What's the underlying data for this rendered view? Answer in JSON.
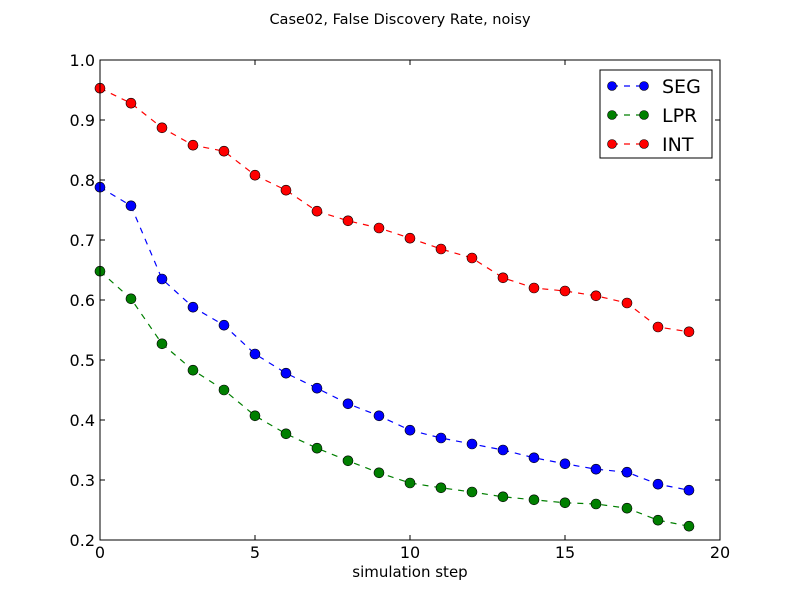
{
  "chart_data": {
    "type": "line",
    "title": "Case02, False Discovery Rate, noisy",
    "xlabel": "simulation step",
    "ylabel": "",
    "xlim": [
      0,
      20
    ],
    "ylim": [
      0.2,
      1.0
    ],
    "xticks": [
      0,
      5,
      10,
      15,
      20
    ],
    "xtick_labels": [
      "0",
      "5",
      "10",
      "15",
      "20"
    ],
    "yticks": [
      0.2,
      0.3,
      0.4,
      0.5,
      0.6,
      0.7,
      0.8,
      0.9,
      1.0
    ],
    "ytick_labels": [
      "0.2",
      "0.3",
      "0.4",
      "0.5",
      "0.6",
      "0.7",
      "0.8",
      "0.9",
      "1.0"
    ],
    "grid": false,
    "legend_position": "top-right",
    "x": [
      0,
      1,
      2,
      3,
      4,
      5,
      6,
      7,
      8,
      9,
      10,
      11,
      12,
      13,
      14,
      15,
      16,
      17,
      18,
      19
    ],
    "series": [
      {
        "name": "SEG",
        "color": "#0000ff",
        "values": [
          0.788,
          0.757,
          0.635,
          0.588,
          0.558,
          0.51,
          0.478,
          0.453,
          0.427,
          0.407,
          0.383,
          0.37,
          0.36,
          0.35,
          0.337,
          0.327,
          0.318,
          0.313,
          0.293,
          0.283
        ]
      },
      {
        "name": "LPR",
        "color": "#007f00",
        "values": [
          0.648,
          0.602,
          0.527,
          0.483,
          0.45,
          0.407,
          0.377,
          0.353,
          0.332,
          0.312,
          0.295,
          0.287,
          0.28,
          0.272,
          0.267,
          0.262,
          0.26,
          0.253,
          0.233,
          0.223
        ]
      },
      {
        "name": "INT",
        "color": "#ff0000",
        "values": [
          0.953,
          0.928,
          0.887,
          0.858,
          0.848,
          0.808,
          0.783,
          0.748,
          0.732,
          0.72,
          0.703,
          0.685,
          0.67,
          0.637,
          0.62,
          0.615,
          0.607,
          0.595,
          0.555,
          0.547
        ]
      }
    ]
  }
}
